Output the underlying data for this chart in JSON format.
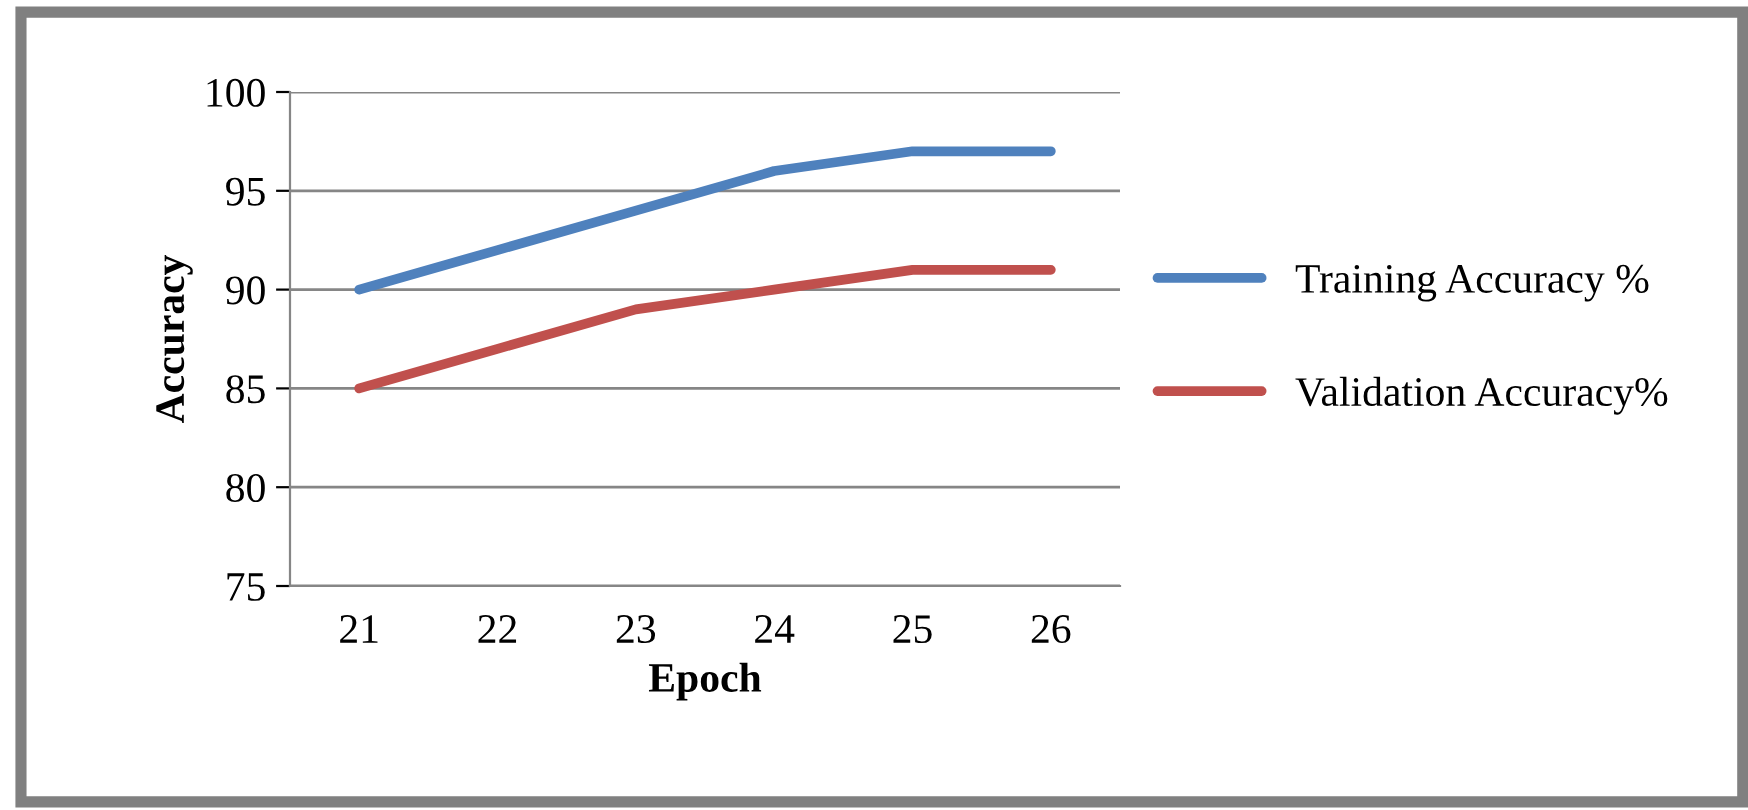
{
  "chart_data": {
    "type": "line",
    "xlabel": "Epoch",
    "ylabel": "Accuracy",
    "categories": [
      "21",
      "22",
      "23",
      "24",
      "25",
      "26"
    ],
    "series": [
      {
        "name": "Training Accuracy %",
        "color": "#4f81bd",
        "values": [
          90,
          92,
          94,
          96,
          97,
          97
        ]
      },
      {
        "name": "Validation Accuracy%",
        "color": "#c0504d",
        "values": [
          85,
          87,
          89,
          90,
          91,
          91
        ]
      }
    ],
    "ylim": [
      75,
      100
    ],
    "yticks": [
      75,
      80,
      85,
      90,
      95,
      100
    ],
    "grid": "y",
    "legend": "right",
    "marker": "none",
    "line_style": "solid"
  }
}
